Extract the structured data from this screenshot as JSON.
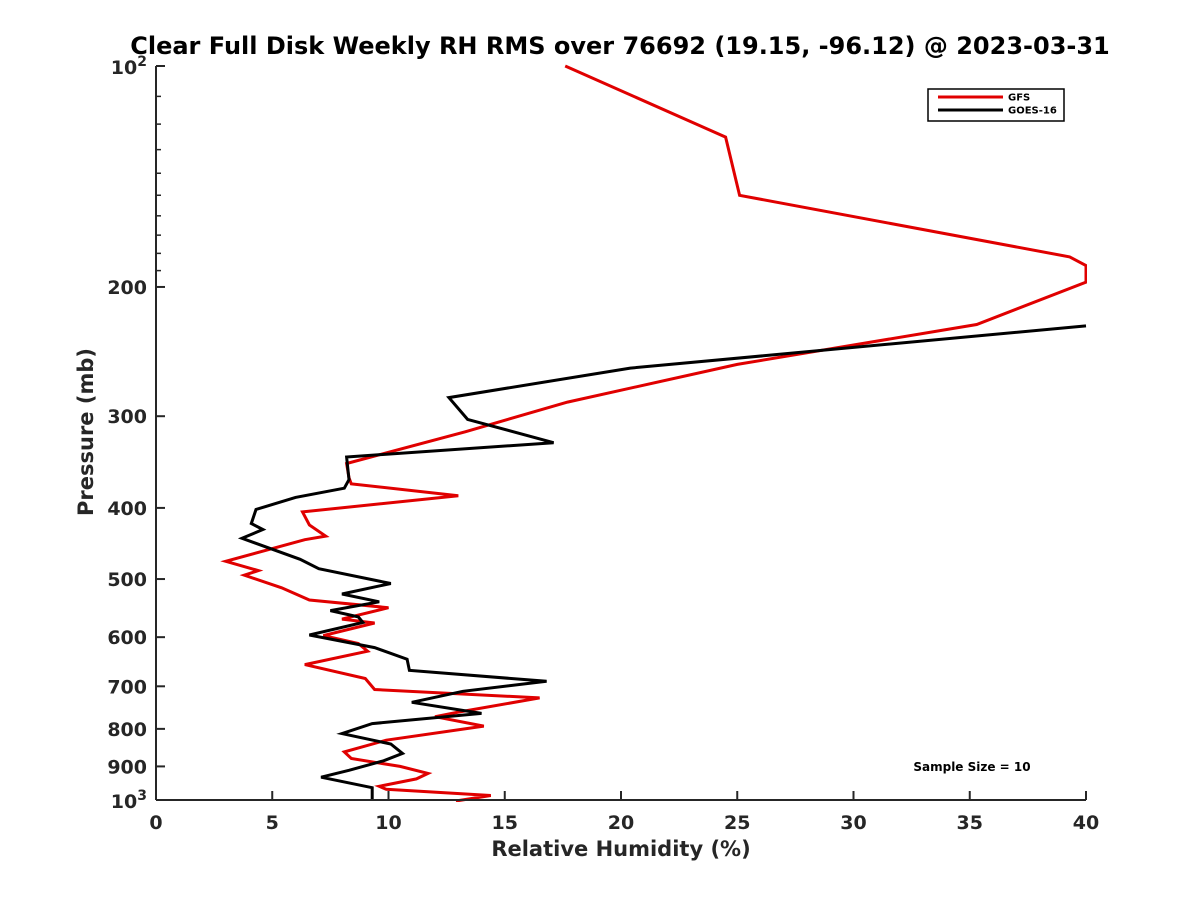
{
  "chart_data": {
    "type": "line",
    "title": "Clear Full Disk Weekly RH RMS over 76692 (19.15, -96.12) @ 2023-03-31",
    "xlabel": "Relative Humidity (%)",
    "ylabel": "Pressure (mb)",
    "xlim": [
      0,
      40
    ],
    "ylim": [
      100,
      1000
    ],
    "yscale": "log",
    "y_reversed": true,
    "xticks": [
      0,
      5,
      10,
      15,
      20,
      25,
      30,
      35,
      40
    ],
    "xtick_labels": [
      "0",
      "5",
      "10",
      "15",
      "20",
      "25",
      "30",
      "35",
      "40"
    ],
    "yticks": [
      200,
      300,
      400,
      500,
      600,
      700,
      800,
      900
    ],
    "ytick_labels": [
      "200",
      "300",
      "400",
      "500",
      "600",
      "700",
      "800",
      "900"
    ],
    "yexp_ticks": [
      {
        "value": 100,
        "base": "10",
        "exp": "2"
      },
      {
        "value": 1000,
        "base": "10",
        "exp": "3"
      }
    ],
    "legend_position": "top-right",
    "annotation": "Sample Size = 10",
    "series": [
      {
        "name": "GFS",
        "color": "#e00000",
        "points": [
          [
            17.6,
            100
          ],
          [
            24.5,
            125
          ],
          [
            25.1,
            150
          ],
          [
            39.3,
            182
          ],
          [
            40.0,
            187
          ],
          [
            40.0,
            197
          ],
          [
            35.3,
            225
          ],
          [
            25.0,
            255
          ],
          [
            17.7,
            287
          ],
          [
            13.3,
            315
          ],
          [
            8.2,
            348
          ],
          [
            8.3,
            364
          ],
          [
            8.4,
            371
          ],
          [
            13.0,
            385
          ],
          [
            6.3,
            405
          ],
          [
            6.6,
            422
          ],
          [
            7.3,
            437
          ],
          [
            6.4,
            442
          ],
          [
            3.0,
            473
          ],
          [
            4.4,
            487
          ],
          [
            3.8,
            494
          ],
          [
            5.4,
            514
          ],
          [
            6.6,
            534
          ],
          [
            10.0,
            547
          ],
          [
            8.0,
            567
          ],
          [
            9.4,
            574
          ],
          [
            7.2,
            597
          ],
          [
            8.7,
            612
          ],
          [
            9.1,
            627
          ],
          [
            6.4,
            654
          ],
          [
            9.0,
            683
          ],
          [
            9.4,
            707
          ],
          [
            16.5,
            726
          ],
          [
            13.0,
            759
          ],
          [
            12.0,
            770
          ],
          [
            14.1,
            793
          ],
          [
            9.9,
            829
          ],
          [
            8.1,
            860
          ],
          [
            8.4,
            878
          ],
          [
            10.5,
            900
          ],
          [
            11.7,
            920
          ],
          [
            11.2,
            936
          ],
          [
            9.6,
            958
          ],
          [
            9.9,
            967
          ],
          [
            14.4,
            986
          ],
          [
            12.9,
            1003
          ]
        ]
      },
      {
        "name": "GOES-16",
        "color": "#000000",
        "points": [
          [
            40.0,
            226
          ],
          [
            20.4,
            258
          ],
          [
            12.6,
            283
          ],
          [
            13.4,
            303
          ],
          [
            17.1,
            326
          ],
          [
            8.2,
            341
          ],
          [
            8.3,
            366
          ],
          [
            8.1,
            376
          ],
          [
            6.0,
            387
          ],
          [
            4.3,
            402
          ],
          [
            4.1,
            420
          ],
          [
            4.6,
            428
          ],
          [
            3.7,
            440
          ],
          [
            6.2,
            470
          ],
          [
            7.0,
            484
          ],
          [
            10.1,
            507
          ],
          [
            8.0,
            524
          ],
          [
            9.6,
            537
          ],
          [
            7.5,
            552
          ],
          [
            8.7,
            563
          ],
          [
            8.9,
            573
          ],
          [
            6.6,
            596
          ],
          [
            9.4,
            620
          ],
          [
            10.8,
            643
          ],
          [
            10.9,
            666
          ],
          [
            16.8,
            689
          ],
          [
            13.2,
            711
          ],
          [
            11.0,
            736
          ],
          [
            14.0,
            762
          ],
          [
            9.3,
            787
          ],
          [
            8.0,
            812
          ],
          [
            10.1,
            839
          ],
          [
            10.6,
            864
          ],
          [
            9.8,
            884
          ],
          [
            8.3,
            911
          ],
          [
            7.1,
            931
          ],
          [
            9.3,
            962
          ],
          [
            9.3,
            1000
          ]
        ]
      }
    ]
  }
}
